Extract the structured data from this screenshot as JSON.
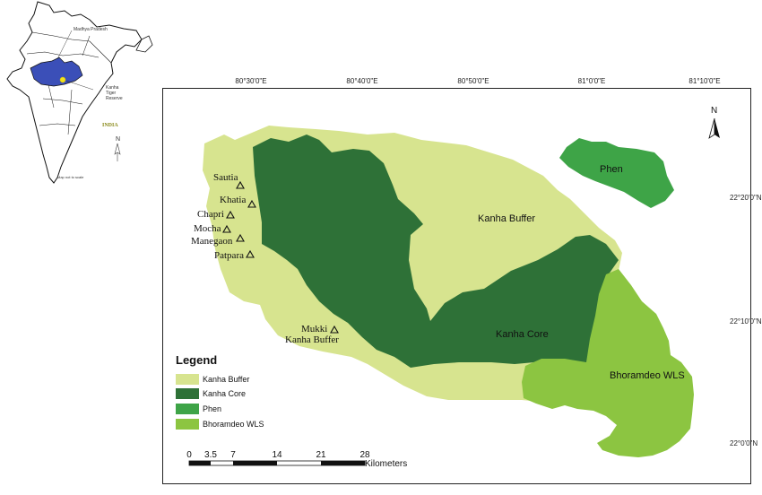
{
  "inset": {
    "state_label": "Madhya Pradesh",
    "reserve_label_1": "Kanha",
    "reserve_label_2": "Tiger",
    "reserve_label_3": "Reserve",
    "country_label": "INDIA",
    "north_label": "N",
    "scale_note": "Map not to scale",
    "colors": {
      "state": "#3b4fb8",
      "reserve": "#f2e21a"
    }
  },
  "map": {
    "north_label": "N",
    "longitudes": [
      "80°30'0\"E",
      "80°40'0\"E",
      "80°50'0\"E",
      "81°0'0\"E",
      "81°10'0\"E"
    ],
    "latitudes": [
      "22°20'0\"N",
      "22°10'0\"N",
      "22°0'0\"N"
    ],
    "places": [
      "Sautia",
      "Khatia",
      "Chapri",
      "Mocha",
      "Manegaon",
      "Patpara",
      "Mukki"
    ],
    "zone_labels": {
      "phen": "Phen",
      "kanha_buffer": "Kanha Buffer",
      "kanha_buffer_south": "Kanha Buffer",
      "kanha_core": "Kanha Core",
      "bhoramdeo": "Bhoramdeo WLS"
    },
    "colors": {
      "kanha_buffer": "#d7e48f",
      "kanha_core": "#2e7137",
      "phen": "#3ea447",
      "bhoramdeo": "#8cc541"
    }
  },
  "legend": {
    "title": "Legend",
    "items": [
      {
        "label": "Kanha Buffer",
        "color": "#d7e48f"
      },
      {
        "label": "Kanha Core",
        "color": "#2e7137"
      },
      {
        "label": "Phen",
        "color": "#3ea447"
      },
      {
        "label": "Bhoramdeo WLS",
        "color": "#8cc541"
      }
    ]
  },
  "scalebar": {
    "ticks": [
      "0",
      "3.5",
      "7",
      "14",
      "21",
      "28"
    ],
    "unit": "Kilometers"
  }
}
